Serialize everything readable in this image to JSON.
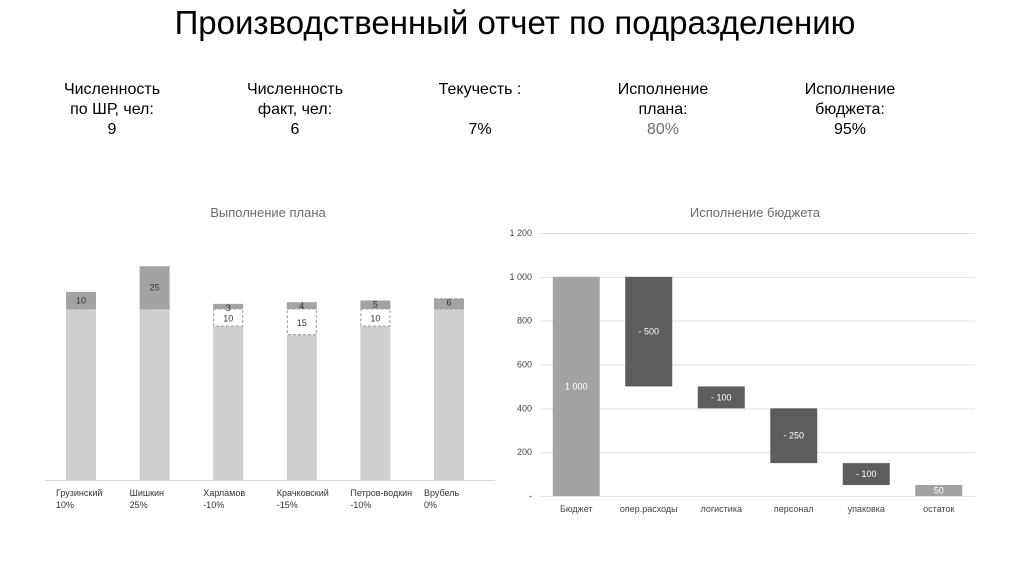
{
  "page": {
    "title": "Производственный отчет по подразделению"
  },
  "kpis": [
    {
      "label_line1": "Численность",
      "label_line2": "по ШР, чел:",
      "value": "9"
    },
    {
      "label_line1": "Численность",
      "label_line2": "факт, чел:",
      "value": "6"
    },
    {
      "label_line1": "Текучесть :",
      "label_line2": "",
      "value": "7%"
    },
    {
      "label_line1": "Исполнение",
      "label_line2": "плана:",
      "value": "80%"
    },
    {
      "label_line1": "Исполнение",
      "label_line2": "бюджета:",
      "value": "95%"
    }
  ],
  "chart_data": [
    {
      "type": "bar",
      "title": "Выполнение плана",
      "categories": [
        "Грузинский",
        "Шишкин",
        "Харламов",
        "Крачковский",
        "Петров-водкин",
        "Врубель"
      ],
      "percent_labels": [
        "10%",
        "25%",
        "-10%",
        "-15%",
        "-10%",
        "0%"
      ],
      "series": [
        {
          "values": [
            100,
            100,
            90,
            85,
            90,
            100
          ]
        },
        {
          "values": [
            10,
            25,
            3,
            4,
            5,
            6
          ]
        },
        {
          "values": [
            1,
            2,
            10,
            15,
            10,
            6
          ]
        }
      ],
      "grid": false,
      "legend": "none",
      "colors": {
        "base": "#d0cfcf",
        "over": "#a3a3a3",
        "gap_border": "#9a9a9a"
      }
    },
    {
      "type": "bar",
      "subtype": "waterfall",
      "title": "Исполнение бюджета",
      "categories": [
        "Бюджет",
        "опер.расходы",
        "логистика",
        "персонал",
        "упаковка",
        "остаток"
      ],
      "values": [
        1000,
        -500,
        -100,
        -250,
        -100,
        50
      ],
      "value_labels": [
        "1 000",
        "- 500",
        "- 100",
        "- 250",
        "- 100",
        "50"
      ],
      "y_tick_labels": [
        "-",
        "200",
        "400",
        "600",
        "800",
        "1 000",
        "1 200"
      ],
      "ylim": [
        0,
        1200
      ],
      "grid": true,
      "legend": "none",
      "colors": {
        "total": "#a3a3a3",
        "decrease": "#5d5d5d",
        "remainder": "#a3a3a3"
      }
    }
  ]
}
